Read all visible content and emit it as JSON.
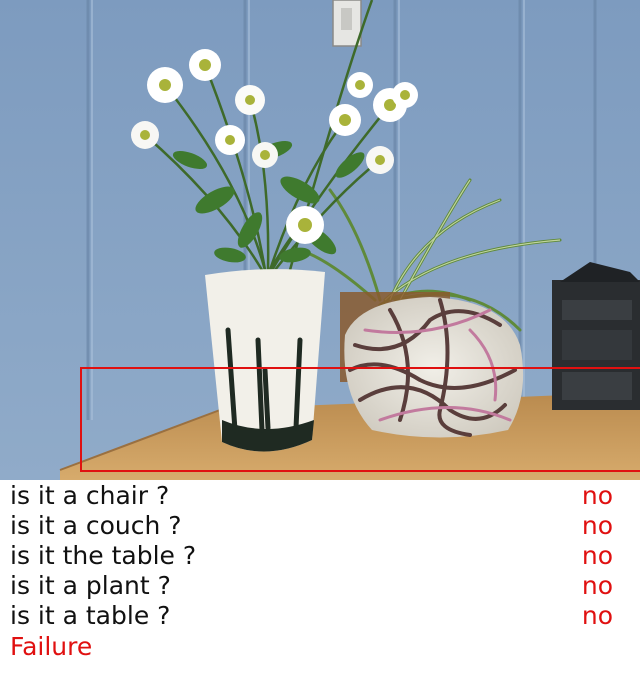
{
  "dialog": [
    {
      "question": "is it a chair ?",
      "answer": "no"
    },
    {
      "question": "is it a couch ?",
      "answer": "no"
    },
    {
      "question": "is it the table ?",
      "answer": "no"
    },
    {
      "question": "is it a plant ?",
      "answer": "no"
    },
    {
      "question": "is it a table ?",
      "answer": "no"
    }
  ],
  "result": "Failure",
  "colors": {
    "answer": "#e01010",
    "result": "#e01010",
    "bbox": "#e01010",
    "wall": "#7f9cbf",
    "table": "#c99a5a"
  }
}
